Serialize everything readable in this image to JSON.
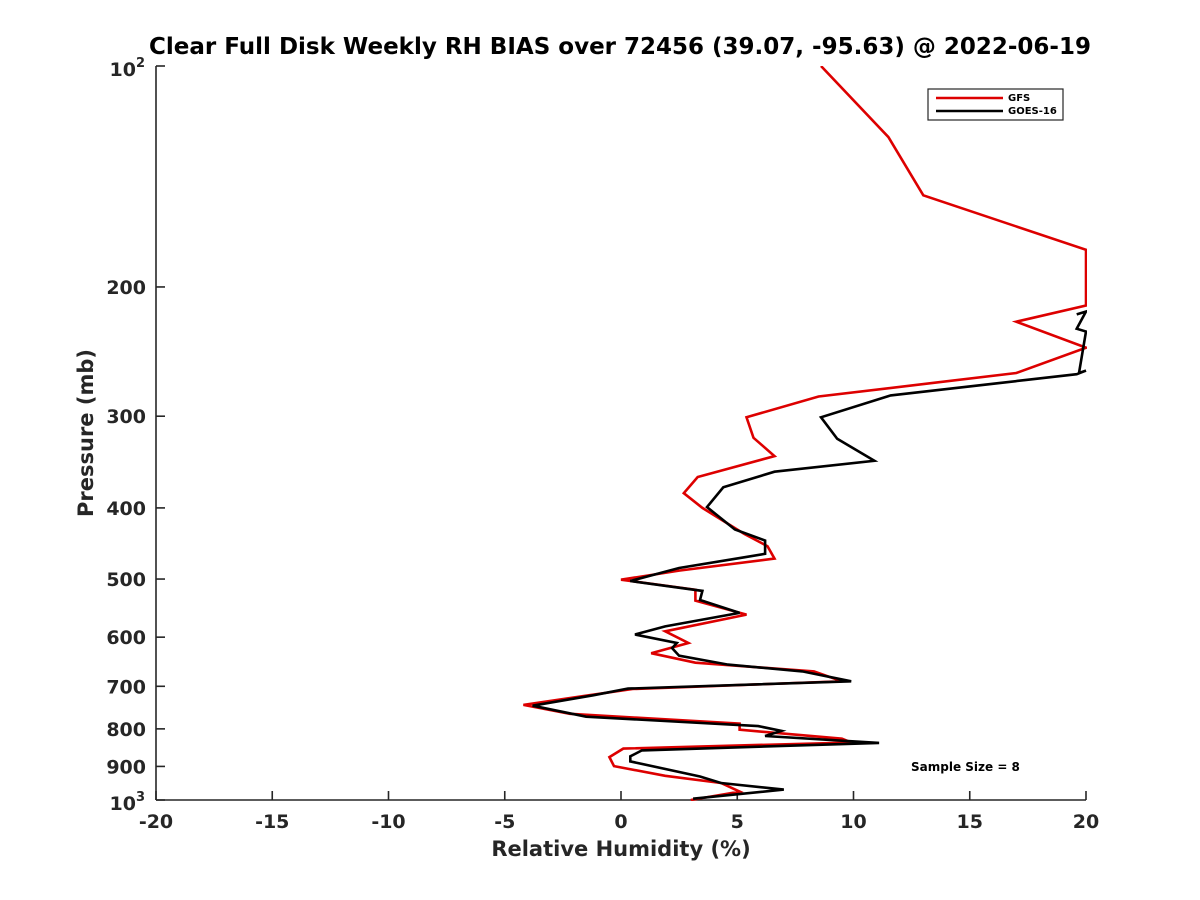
{
  "chart_data": {
    "type": "line",
    "title": "Clear Full Disk Weekly RH BIAS over 72456 (39.07, -95.63) @ 2022-06-19",
    "xlabel": "Relative Humidity (%)",
    "ylabel": "Pressure (mb)",
    "xlim": [
      -20,
      20
    ],
    "ylim": [
      100,
      1000
    ],
    "yscale": "log",
    "y_reversed": true,
    "x_ticks": [
      -20,
      -15,
      -10,
      -5,
      0,
      5,
      10,
      15,
      20
    ],
    "x_tick_labels": [
      "-20",
      "-15",
      "-10",
      "-5",
      "0",
      "5",
      "10",
      "15",
      "20"
    ],
    "y_ticks": [
      100,
      200,
      300,
      400,
      500,
      600,
      700,
      800,
      900,
      1000
    ],
    "y_tick_labels": [
      {
        "base": "10",
        "exp": "2"
      },
      "200",
      "300",
      "400",
      "500",
      "600",
      "700",
      "800",
      "900",
      {
        "base": "10",
        "exp": "3"
      }
    ],
    "legend_position": "top-right",
    "annotation": "Sample Size = 8",
    "series": [
      {
        "name": "GFS",
        "color": "#dd0000",
        "points": [
          [
            8.6,
            100
          ],
          [
            11.5,
            125
          ],
          [
            13,
            150
          ],
          [
            20,
            178
          ],
          [
            20,
            212
          ],
          [
            17,
            223
          ],
          [
            20,
            242
          ],
          [
            17,
            262
          ],
          [
            8.5,
            282
          ],
          [
            5.4,
            301
          ],
          [
            5.7,
            321
          ],
          [
            6.6,
            340
          ],
          [
            3.3,
            363
          ],
          [
            2.7,
            382
          ],
          [
            3.5,
            400
          ],
          [
            5.3,
            434
          ],
          [
            6.3,
            451
          ],
          [
            6.6,
            469
          ],
          [
            2.5,
            487
          ],
          [
            0,
            501
          ],
          [
            3.2,
            517
          ],
          [
            3.2,
            535
          ],
          [
            5.4,
            559
          ],
          [
            1.9,
            589
          ],
          [
            2.9,
            611
          ],
          [
            1.3,
            631
          ],
          [
            3.2,
            650
          ],
          [
            8.3,
            668
          ],
          [
            9.5,
            689
          ],
          [
            0.5,
            706
          ],
          [
            -1.5,
            721
          ],
          [
            -4.2,
            742
          ],
          [
            -2.2,
            763
          ],
          [
            5.1,
            787
          ],
          [
            5.1,
            802
          ],
          [
            9.5,
            825
          ],
          [
            9.9,
            835
          ],
          [
            0.1,
            851
          ],
          [
            -0.5,
            874
          ],
          [
            -0.3,
            899
          ],
          [
            1.9,
            927
          ],
          [
            4.3,
            948
          ],
          [
            5.1,
            974
          ],
          [
            3,
            1000
          ]
        ]
      },
      {
        "name": "GOES-16",
        "color": "#000000",
        "points": [
          [
            19.6,
            218
          ],
          [
            20,
            216
          ],
          [
            19.6,
            228
          ],
          [
            20,
            230
          ],
          [
            19.7,
            262
          ],
          [
            20,
            260
          ],
          [
            19.6,
            263
          ],
          [
            11.6,
            281
          ],
          [
            8.6,
            301
          ],
          [
            9.3,
            322
          ],
          [
            10.9,
            345
          ],
          [
            6.6,
            357
          ],
          [
            4.4,
            375
          ],
          [
            3.7,
            399
          ],
          [
            4.9,
            428
          ],
          [
            6.2,
            443
          ],
          [
            6.2,
            462
          ],
          [
            5.3,
            467
          ],
          [
            2.5,
            483
          ],
          [
            0.4,
            503
          ],
          [
            3.5,
            519
          ],
          [
            3.4,
            534
          ],
          [
            5.1,
            556
          ],
          [
            1.9,
            580
          ],
          [
            0.6,
            595
          ],
          [
            2.4,
            611
          ],
          [
            2.2,
            621
          ],
          [
            2.5,
            636
          ],
          [
            4.6,
            654
          ],
          [
            7.8,
            668
          ],
          [
            9.9,
            689
          ],
          [
            0.3,
            705
          ],
          [
            -1.2,
            720
          ],
          [
            -3.8,
            744
          ],
          [
            -1.5,
            770
          ],
          [
            5.9,
            793
          ],
          [
            6.9,
            805
          ],
          [
            6.2,
            818
          ],
          [
            10.3,
            833
          ],
          [
            11.1,
            836
          ],
          [
            0.9,
            856
          ],
          [
            0.4,
            872
          ],
          [
            0.4,
            886
          ],
          [
            3.4,
            929
          ],
          [
            4.3,
            948
          ],
          [
            7,
            968
          ],
          [
            3.1,
            996
          ]
        ]
      }
    ]
  }
}
